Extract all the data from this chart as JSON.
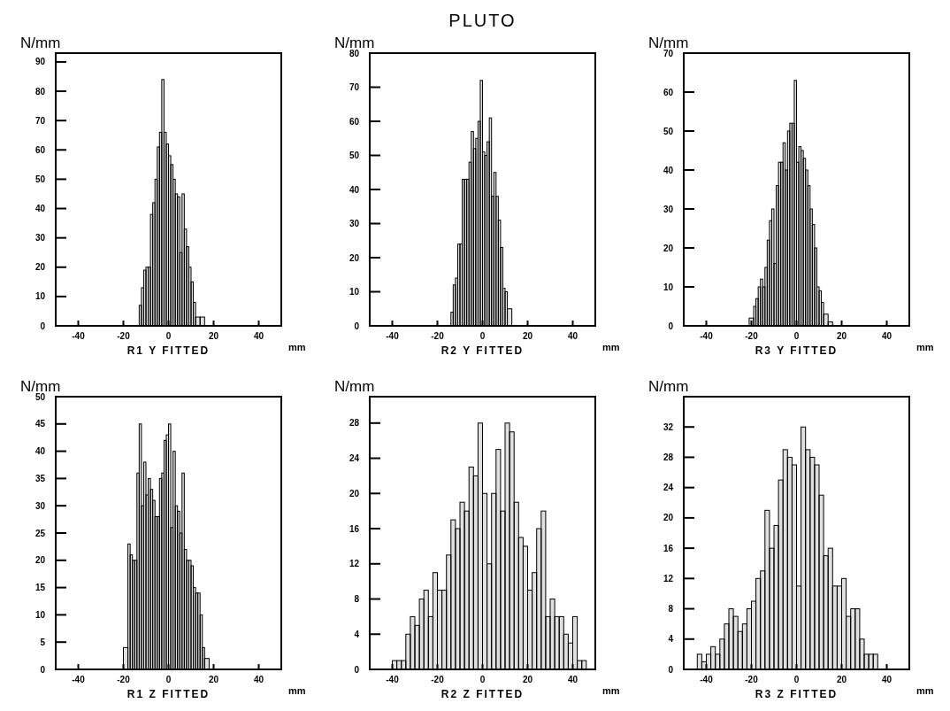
{
  "chart_data": [
    {
      "type": "histogram",
      "xlabel": "R1 Y FITTED",
      "ylabel": "N/mm",
      "annotations": [
        "mm"
      ],
      "color": "#000000",
      "bins": [
        -13,
        -12,
        -11,
        -10,
        -9,
        -8,
        -7,
        -6,
        -5,
        -4,
        -3,
        -2,
        -1,
        0,
        1,
        2,
        3,
        4,
        5,
        6,
        7,
        8,
        9,
        10,
        11,
        12,
        14,
        16
      ],
      "values": [
        7,
        13,
        19,
        20,
        20,
        38,
        42,
        50,
        61,
        66,
        84,
        66,
        62,
        58,
        55,
        50,
        45,
        44,
        25,
        45,
        33,
        27,
        20,
        15,
        8,
        3,
        3
      ],
      "xlim": [
        -50,
        50
      ],
      "xticks": [
        -40,
        -20,
        0,
        20,
        40
      ],
      "ylim": [
        0,
        93
      ],
      "yticks": [
        0,
        10,
        20,
        30,
        40,
        50,
        60,
        70,
        80,
        90
      ]
    },
    {
      "type": "histogram",
      "title": "PLUTO",
      "xlabel": "R2 Y FITTED",
      "ylabel": "N/mm",
      "annotations": [
        "mm"
      ],
      "color": "#000000",
      "bins": [
        -14,
        -13,
        -12,
        -11,
        -10,
        -9,
        -8,
        -7,
        -6,
        -5,
        -4,
        -3,
        -2,
        -1,
        0,
        1,
        2,
        3,
        4,
        5,
        6,
        7,
        8,
        9,
        10,
        11,
        13
      ],
      "values": [
        4,
        12,
        14,
        24,
        24,
        43,
        43,
        43,
        48,
        57,
        52,
        55,
        60,
        72,
        51,
        50,
        54,
        61,
        38,
        45,
        38,
        31,
        23,
        11,
        10,
        5
      ],
      "xlim": [
        -50,
        50
      ],
      "xticks": [
        -40,
        -20,
        0,
        20,
        40
      ],
      "ylim": [
        0,
        80
      ],
      "yticks": [
        0,
        10,
        20,
        30,
        40,
        50,
        60,
        70,
        80
      ]
    },
    {
      "type": "histogram",
      "xlabel": "R3 Y FITTED",
      "ylabel": "N/mm",
      "annotations": [
        "mm"
      ],
      "color": "#000000",
      "bins": [
        -21,
        -19,
        -18,
        -17,
        -16,
        -15,
        -14,
        -13,
        -12,
        -11,
        -10,
        -9,
        -8,
        -7,
        -6,
        -5,
        -4,
        -3,
        -2,
        -1,
        0,
        1,
        2,
        3,
        4,
        5,
        6,
        7,
        8,
        9,
        10,
        11,
        12,
        14,
        16
      ],
      "values": [
        2,
        5,
        7,
        10,
        12,
        10,
        15,
        22,
        27,
        30,
        16,
        36,
        42,
        42,
        47,
        40,
        50,
        52,
        52,
        63,
        42,
        46,
        45,
        43,
        40,
        36,
        30,
        26,
        20,
        10,
        9,
        6,
        3,
        1
      ],
      "xlim": [
        -50,
        50
      ],
      "xticks": [
        -40,
        -20,
        0,
        20,
        40
      ],
      "ylim": [
        0,
        70
      ],
      "yticks": [
        0,
        10,
        20,
        30,
        40,
        50,
        60,
        70
      ]
    },
    {
      "type": "histogram",
      "xlabel": "R1 Z FITTED",
      "ylabel": "N/mm",
      "annotations": [
        "mm"
      ],
      "color": "#000000",
      "bins": [
        -20,
        -18,
        -17,
        -16,
        -15,
        -14,
        -13,
        -12,
        -11,
        -10,
        -9,
        -8,
        -7,
        -6,
        -5,
        -4,
        -3,
        -2,
        -1,
        0,
        1,
        2,
        3,
        4,
        5,
        6,
        7,
        8,
        9,
        10,
        11,
        12,
        13,
        14,
        15,
        16,
        18
      ],
      "values": [
        4,
        23,
        21,
        20,
        20,
        36,
        45,
        30,
        38,
        32,
        35,
        33,
        31,
        28,
        28,
        35,
        36,
        42,
        43,
        45,
        26,
        40,
        30,
        29,
        25,
        36,
        22,
        20,
        20,
        19,
        15,
        14,
        14,
        10,
        4,
        2
      ],
      "xlim": [
        -50,
        50
      ],
      "xticks": [
        -40,
        -20,
        0,
        20,
        40
      ],
      "ylim": [
        0,
        50
      ],
      "yticks": [
        0,
        5,
        10,
        15,
        20,
        25,
        30,
        35,
        40,
        45,
        50
      ]
    },
    {
      "type": "histogram",
      "xlabel": "R2 Z FITTED",
      "ylabel": "N/mm",
      "annotations": [
        "mm"
      ],
      "color": "#000000",
      "bins": [
        -40,
        -38,
        -36,
        -34,
        -32,
        -30,
        -28,
        -26,
        -24,
        -22,
        -20,
        -18,
        -16,
        -14,
        -12,
        -10,
        -8,
        -6,
        -4,
        -2,
        0,
        2,
        4,
        6,
        8,
        10,
        12,
        14,
        16,
        18,
        20,
        22,
        24,
        26,
        28,
        30,
        32,
        34,
        36,
        38,
        40,
        42,
        44,
        46
      ],
      "values": [
        1,
        1,
        1,
        4,
        6,
        5,
        8,
        9,
        6,
        11,
        9,
        9,
        13,
        17,
        16,
        19,
        18,
        23,
        22,
        28,
        20,
        12,
        20,
        25,
        18,
        28,
        27,
        19,
        15,
        14,
        9,
        11,
        16,
        18,
        6,
        8,
        6,
        6,
        4,
        3,
        6,
        1,
        1
      ],
      "xlim": [
        -50,
        50
      ],
      "xticks": [
        -40,
        -20,
        0,
        20,
        40
      ],
      "ylim": [
        0,
        31
      ],
      "yticks": [
        0,
        4,
        8,
        12,
        16,
        20,
        24,
        28
      ]
    },
    {
      "type": "histogram",
      "xlabel": "R3 Z FITTED",
      "ylabel": "N/mm",
      "annotations": [
        "mm"
      ],
      "color": "#000000",
      "bins": [
        -44,
        -42,
        -40,
        -38,
        -36,
        -34,
        -32,
        -30,
        -28,
        -26,
        -24,
        -22,
        -20,
        -18,
        -16,
        -14,
        -12,
        -10,
        -8,
        -6,
        -4,
        -2,
        0,
        2,
        4,
        6,
        8,
        10,
        12,
        14,
        16,
        18,
        20,
        22,
        24,
        26,
        28,
        30,
        32,
        34,
        36
      ],
      "values": [
        2,
        1,
        2,
        3,
        2,
        4,
        6,
        8,
        7,
        5,
        6,
        8,
        9,
        12,
        13,
        21,
        16,
        19,
        25,
        29,
        28,
        27,
        11,
        32,
        29,
        28,
        27,
        23,
        15,
        16,
        11,
        11,
        12,
        7,
        8,
        8,
        4,
        2,
        2,
        2
      ],
      "xlim": [
        -50,
        50
      ],
      "xticks": [
        -40,
        -20,
        0,
        20,
        40
      ],
      "ylim": [
        0,
        36
      ],
      "yticks": [
        0,
        4,
        8,
        12,
        16,
        20,
        24,
        28,
        32
      ]
    }
  ]
}
